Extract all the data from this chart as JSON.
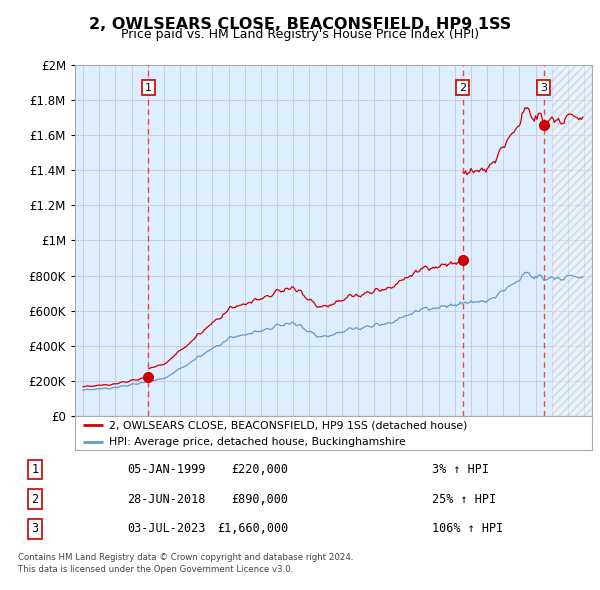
{
  "title": "2, OWLSEARS CLOSE, BEACONSFIELD, HP9 1SS",
  "subtitle": "Price paid vs. HM Land Registry's House Price Index (HPI)",
  "hpi_color": "#6699cc",
  "sale_color": "#cc0000",
  "dashed_color": "#ee4444",
  "plot_bg": "#ddeeff",
  "ylim": [
    0,
    2000000
  ],
  "yticks": [
    0,
    200000,
    400000,
    600000,
    800000,
    1000000,
    1200000,
    1400000,
    1600000,
    1800000,
    2000000
  ],
  "sale_points": [
    {
      "date_num": 1999.04,
      "price": 220000,
      "label": "1"
    },
    {
      "date_num": 2018.49,
      "price": 890000,
      "label": "2"
    },
    {
      "date_num": 2023.5,
      "price": 1660000,
      "label": "3"
    }
  ],
  "sale_dates_label": [
    "05-JAN-1999",
    "28-JUN-2018",
    "03-JUL-2023"
  ],
  "sale_prices_label": [
    "£220,000",
    "£890,000",
    "£1,660,000"
  ],
  "sale_pct_label": [
    "3% ↑ HPI",
    "25% ↑ HPI",
    "106% ↑ HPI"
  ],
  "legend_sale": "2, OWLSEARS CLOSE, BEACONSFIELD, HP9 1SS (detached house)",
  "legend_hpi": "HPI: Average price, detached house, Buckinghamshire",
  "footer1": "Contains HM Land Registry data © Crown copyright and database right 2024.",
  "footer2": "This data is licensed under the Open Government Licence v3.0.",
  "xmin": 1994.5,
  "xmax": 2026.5,
  "hatch_start": 2024.0
}
